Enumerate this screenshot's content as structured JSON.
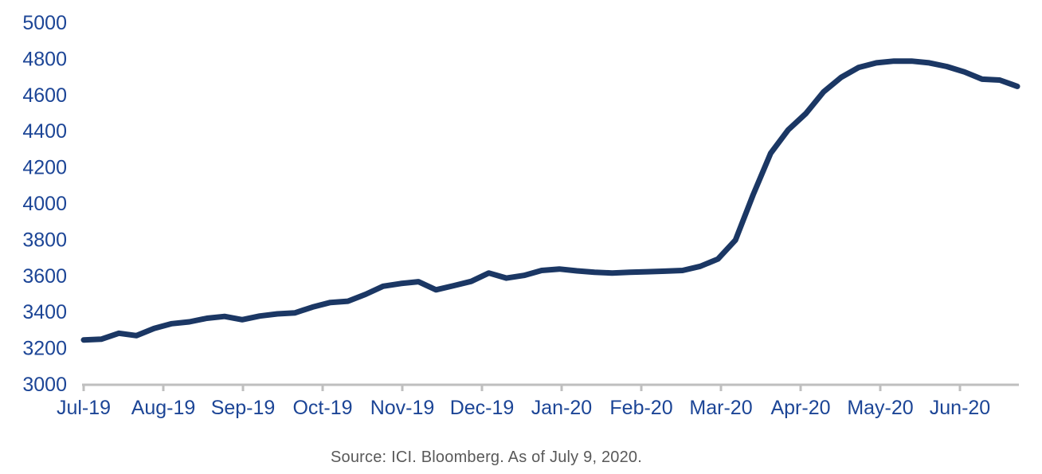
{
  "chart_data": {
    "type": "line",
    "title": "",
    "frequency": "weekly",
    "x_tick_labels": [
      "Jul-19",
      "Aug-19",
      "Sep-19",
      "Oct-19",
      "Nov-19",
      "Dec-19",
      "Jan-20",
      "Feb-20",
      "Mar-20",
      "Apr-20",
      "May-20",
      "Jun-20"
    ],
    "y_ticks": [
      3000,
      3200,
      3400,
      3600,
      3800,
      4000,
      4200,
      4400,
      4600,
      4800,
      5000
    ],
    "ylim": [
      3000,
      5000
    ],
    "grid": false,
    "legend_position": "none",
    "values": [
      3248,
      3252,
      3285,
      3272,
      3312,
      3338,
      3348,
      3368,
      3378,
      3360,
      3380,
      3392,
      3398,
      3430,
      3455,
      3462,
      3500,
      3545,
      3560,
      3570,
      3525,
      3548,
      3572,
      3618,
      3590,
      3605,
      3632,
      3640,
      3630,
      3622,
      3618,
      3622,
      3625,
      3628,
      3632,
      3655,
      3695,
      3800,
      4050,
      4280,
      4410,
      4500,
      4620,
      4700,
      4755,
      4780,
      4790,
      4790,
      4780,
      4760,
      4730,
      4690,
      4685,
      4650
    ],
    "colors": {
      "line": "#1B3764",
      "axis": "#BFBFBF",
      "tick_label": "#1C4596",
      "source_text": "#595959",
      "background": "#FFFFFF"
    }
  },
  "footer": {
    "source_text": "Source: ICI. Bloomberg. As of July 9, 2020."
  }
}
